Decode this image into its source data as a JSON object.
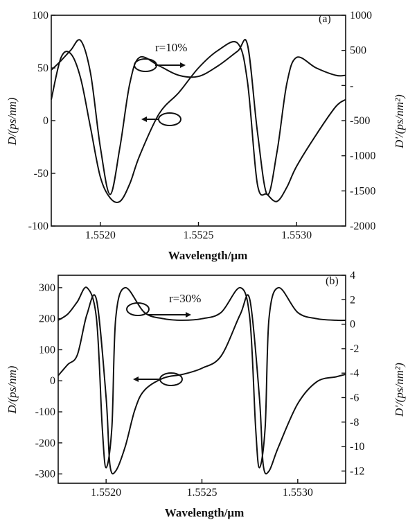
{
  "chart_data": [
    {
      "type": "line",
      "panel_label": "(a)",
      "annotation": "r=10%",
      "xlabel": "Wavelength/μm",
      "ylabel_left": "D/(ps/nm)",
      "ylabel_right": "D'/(ps/nm²)",
      "xlim": [
        1.55175,
        1.55325
      ],
      "xticks": [
        1.552,
        1.5525,
        1.553
      ],
      "xtick_labels": [
        "1.5520",
        "1.5525",
        "1.5530"
      ],
      "ylim_left": [
        -100,
        100
      ],
      "yticks_left": [
        -100,
        -50,
        0,
        50,
        100
      ],
      "ylim_right": [
        -2000,
        1000
      ],
      "yticks_right": [
        -2000,
        -1500,
        -1000,
        -500,
        0,
        500,
        1000
      ],
      "ytick_labels_right": [
        "-2000",
        "-1500",
        "-1000",
        "-500",
        "-",
        "500",
        "1000"
      ],
      "series": [
        {
          "axis": "left",
          "x": [
            1.55175,
            1.5518,
            1.55185,
            1.5519,
            1.55195,
            1.552,
            1.55205,
            1.5521,
            1.55215,
            1.5522,
            1.5523,
            1.5524,
            1.5525,
            1.5526,
            1.5527,
            1.55275,
            1.5528,
            1.55285,
            1.5529,
            1.55295,
            1.553,
            1.5531,
            1.5532,
            1.55325
          ],
          "y": [
            48,
            57,
            67,
            76,
            45,
            -25,
            -70,
            -25,
            35,
            60,
            52,
            43,
            42,
            52,
            66,
            72,
            -10,
            -70,
            -30,
            35,
            60,
            50,
            43,
            43
          ]
        },
        {
          "axis": "right",
          "x": [
            1.55175,
            1.5518,
            1.55185,
            1.5519,
            1.55195,
            1.552,
            1.55205,
            1.5521,
            1.55215,
            1.5522,
            1.5523,
            1.5524,
            1.5525,
            1.5526,
            1.5527,
            1.55275,
            1.5528,
            1.55285,
            1.5529,
            1.55295,
            1.553,
            1.5531,
            1.5532,
            1.55325
          ],
          "y": [
            -200,
            400,
            450,
            100,
            -600,
            -1300,
            -1600,
            -1650,
            -1400,
            -1000,
            -400,
            -100,
            250,
            500,
            600,
            50,
            -1400,
            -1550,
            -1650,
            -1450,
            -1150,
            -700,
            -300,
            -200
          ]
        }
      ]
    },
    {
      "type": "line",
      "panel_label": "(b)",
      "annotation": "r=30%",
      "xlabel": "Wavelength/μm",
      "ylabel_left": "D/(ps/nm)",
      "ylabel_right": "D'/(ps/nm²)",
      "xlim": [
        1.55175,
        1.55325
      ],
      "xticks": [
        1.552,
        1.5525,
        1.553
      ],
      "xtick_labels": [
        "1.5520",
        "1.5525",
        "1.5530"
      ],
      "ylim_left": [
        -330,
        340
      ],
      "yticks_left": [
        -300,
        -200,
        -100,
        0,
        100,
        200,
        300
      ],
      "ylim_right": [
        -13,
        4
      ],
      "yticks_right": [
        -12,
        -10,
        -8,
        -6,
        -4,
        -2,
        0,
        2,
        4
      ],
      "series": [
        {
          "axis": "left",
          "x": [
            1.55175,
            1.5518,
            1.55185,
            1.5519,
            1.55195,
            1.55198,
            1.552,
            1.55203,
            1.55205,
            1.5521,
            1.5522,
            1.5523,
            1.5524,
            1.5525,
            1.5526,
            1.5527,
            1.55275,
            1.55278,
            1.5528,
            1.55283,
            1.55285,
            1.5529,
            1.553,
            1.5531,
            1.5532,
            1.55325
          ],
          "y": [
            195,
            215,
            255,
            300,
            200,
            -150,
            -280,
            -150,
            200,
            300,
            220,
            200,
            195,
            200,
            220,
            300,
            200,
            -150,
            -280,
            -150,
            200,
            300,
            220,
            200,
            195,
            195
          ]
        },
        {
          "axis": "right",
          "x": [
            1.55175,
            1.5518,
            1.55185,
            1.5519,
            1.55195,
            1.552,
            1.55202,
            1.55205,
            1.5521,
            1.55215,
            1.5522,
            1.5523,
            1.5524,
            1.5525,
            1.5526,
            1.5527,
            1.55275,
            1.5528,
            1.55282,
            1.55285,
            1.5529,
            1.553,
            1.5531,
            1.5532,
            1.55325
          ],
          "y": [
            -4.2,
            -3.3,
            -2.5,
            0.8,
            2.0,
            -6,
            -11.5,
            -12,
            -10,
            -7,
            -5.4,
            -4.4,
            -4.1,
            -3.6,
            -2.6,
            0.8,
            2.0,
            -6,
            -11.5,
            -12,
            -10,
            -6.5,
            -4.7,
            -4.3,
            -4.1
          ]
        }
      ]
    }
  ]
}
